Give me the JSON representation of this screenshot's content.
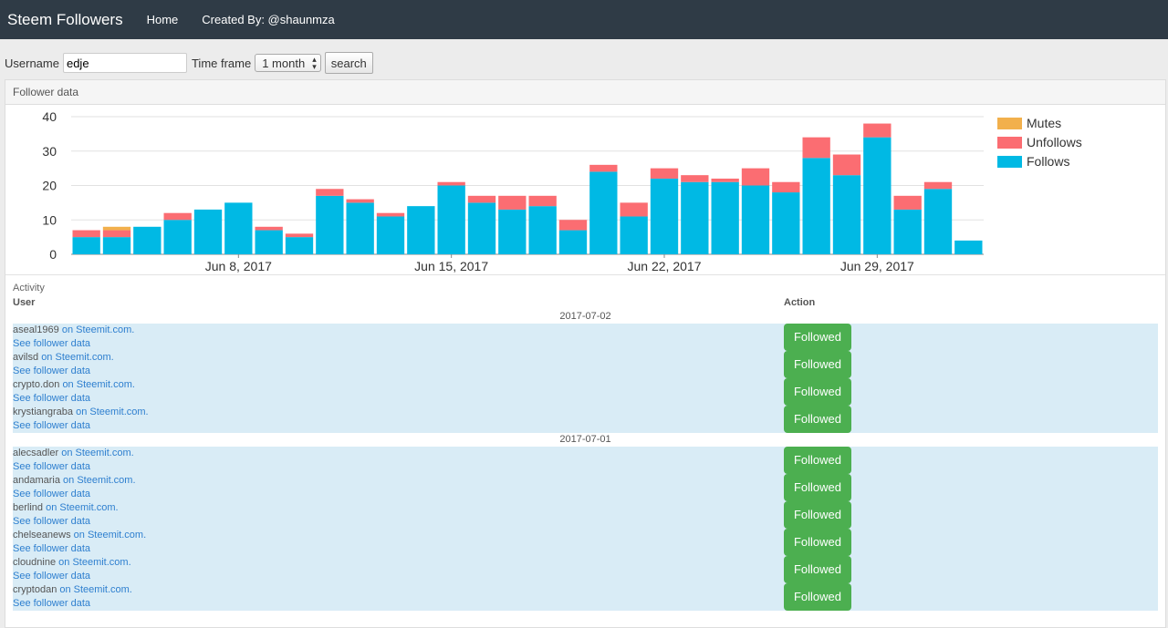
{
  "navbar": {
    "brand": "Steem Followers",
    "home": "Home",
    "created_by": "Created By: @shaunmza"
  },
  "controls": {
    "username_label": "Username",
    "username_value": "edje",
    "timeframe_label": "Time frame",
    "timeframe_value": "1 month",
    "search_label": "search"
  },
  "panel": {
    "title": "Follower data"
  },
  "chart_data": {
    "type": "bar",
    "stacked": true,
    "ylim": [
      0,
      40
    ],
    "yticks": [
      0,
      10,
      20,
      30,
      40
    ],
    "xtick_labels": [
      {
        "label": "Jun 8, 2017",
        "index": 5
      },
      {
        "label": "Jun 15, 2017",
        "index": 12
      },
      {
        "label": "Jun 22, 2017",
        "index": 19
      },
      {
        "label": "Jun 29, 2017",
        "index": 26
      }
    ],
    "legend_position": "right",
    "series": [
      {
        "name": "Follows",
        "color": "#00b9e4",
        "values": [
          5,
          5,
          8,
          10,
          13,
          15,
          7,
          5,
          17,
          15,
          11,
          14,
          20,
          15,
          13,
          14,
          7,
          24,
          11,
          22,
          21,
          21,
          20,
          18,
          28,
          23,
          34,
          13,
          19,
          4
        ]
      },
      {
        "name": "Unfollows",
        "color": "#fb6d72",
        "values": [
          2,
          2,
          0,
          2,
          0,
          0,
          1,
          1,
          2,
          1,
          1,
          0,
          1,
          2,
          4,
          3,
          3,
          2,
          4,
          3,
          2,
          1,
          5,
          3,
          6,
          6,
          4,
          4,
          2,
          0
        ]
      },
      {
        "name": "Mutes",
        "color": "#f2b04c",
        "values": [
          0,
          1,
          0,
          0,
          0,
          0,
          0,
          0,
          0,
          0,
          0,
          0,
          0,
          0,
          0,
          0,
          0,
          0,
          0,
          0,
          0,
          0,
          0,
          0,
          0,
          0,
          0,
          0,
          0,
          0
        ]
      }
    ]
  },
  "activity": {
    "label": "Activity",
    "col_user": "User",
    "col_action": "Action",
    "groups": [
      {
        "date": "2017-07-02",
        "entries": [
          {
            "user": "aseal1969",
            "link": "on Steemit.com.",
            "see": "See follower data",
            "action": "Followed"
          },
          {
            "user": "avilsd",
            "link": "on Steemit.com.",
            "see": "See follower data",
            "action": "Followed"
          },
          {
            "user": "crypto.don",
            "link": "on Steemit.com.",
            "see": "See follower data",
            "action": "Followed"
          },
          {
            "user": "krystiangraba",
            "link": "on Steemit.com.",
            "see": "See follower data",
            "action": "Followed"
          }
        ]
      },
      {
        "date": "2017-07-01",
        "entries": [
          {
            "user": "alecsadler",
            "link": "on Steemit.com.",
            "see": "See follower data",
            "action": "Followed"
          },
          {
            "user": "andamaria",
            "link": "on Steemit.com.",
            "see": "See follower data",
            "action": "Followed"
          },
          {
            "user": "berlind",
            "link": "on Steemit.com.",
            "see": "See follower data",
            "action": "Followed"
          },
          {
            "user": "chelseanews",
            "link": "on Steemit.com.",
            "see": "See follower data",
            "action": "Followed"
          },
          {
            "user": "cloudnine",
            "link": "on Steemit.com.",
            "see": "See follower data",
            "action": "Followed"
          },
          {
            "user": "cryptodan",
            "link": "on Steemit.com.",
            "see": "See follower data",
            "action": "Followed"
          }
        ]
      }
    ]
  }
}
